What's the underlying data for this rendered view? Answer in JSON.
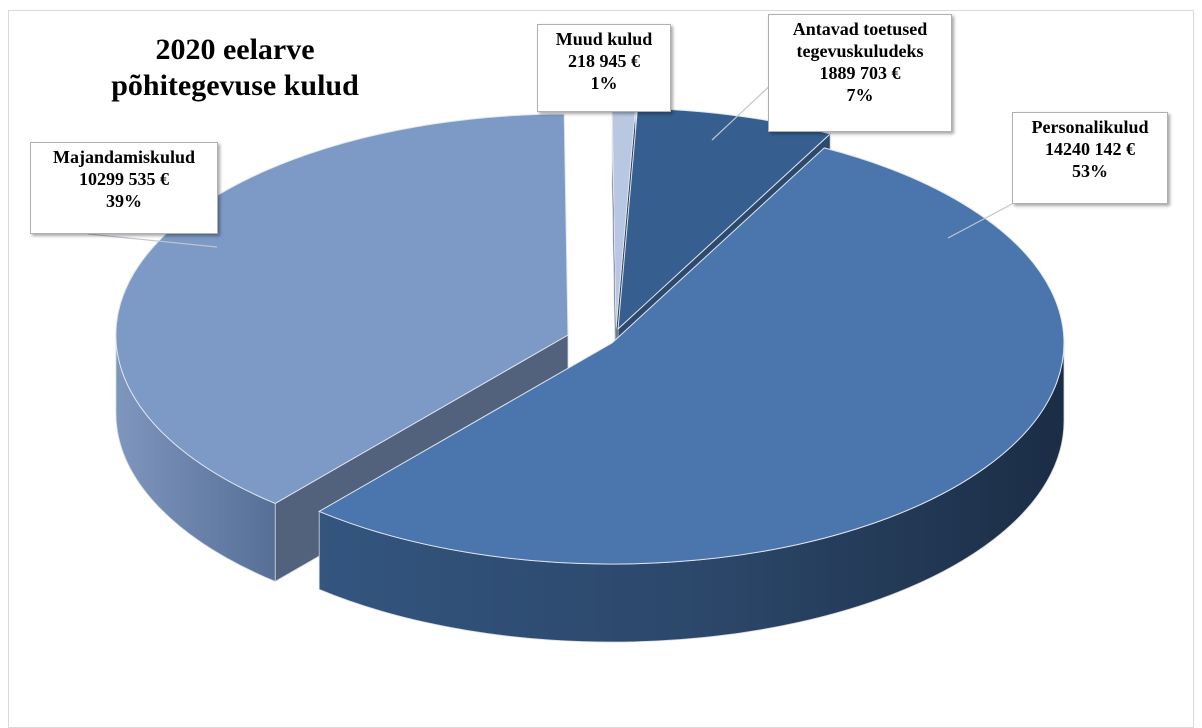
{
  "chart_data": {
    "type": "pie",
    "title": [
      "2020 eelarve",
      "põhitegevuse kulud"
    ],
    "style": "3d-exploded",
    "colors": {
      "Personalikulud": "#4a76ad",
      "Majandamiskulud": "#7d99c5",
      "Antavad toetused tegevuskuludeks": "#365f8f",
      "Muud kulud": "#b8c8e2"
    },
    "slices": [
      {
        "name": "Personalikulud",
        "value": 14240142,
        "percent": 53,
        "label_lines": [
          "Personalikulud",
          "14240 142 €",
          "53%"
        ]
      },
      {
        "name": "Majandamiskulud",
        "value": 10299535,
        "percent": 39,
        "label_lines": [
          "Majandamiskulud",
          "10299 535 €",
          "39%"
        ]
      },
      {
        "name": "Muud kulud",
        "value": 218945,
        "percent": 1,
        "label_lines": [
          "Muud kulud",
          "218 945 €",
          "1%"
        ]
      },
      {
        "name": "Antavad toetused tegevuskuludeks",
        "value": 1889703,
        "percent": 7,
        "label_lines": [
          "Antavad toetused",
          "tegevuskuludeks",
          "1889 703 €",
          "7%"
        ]
      }
    ]
  }
}
